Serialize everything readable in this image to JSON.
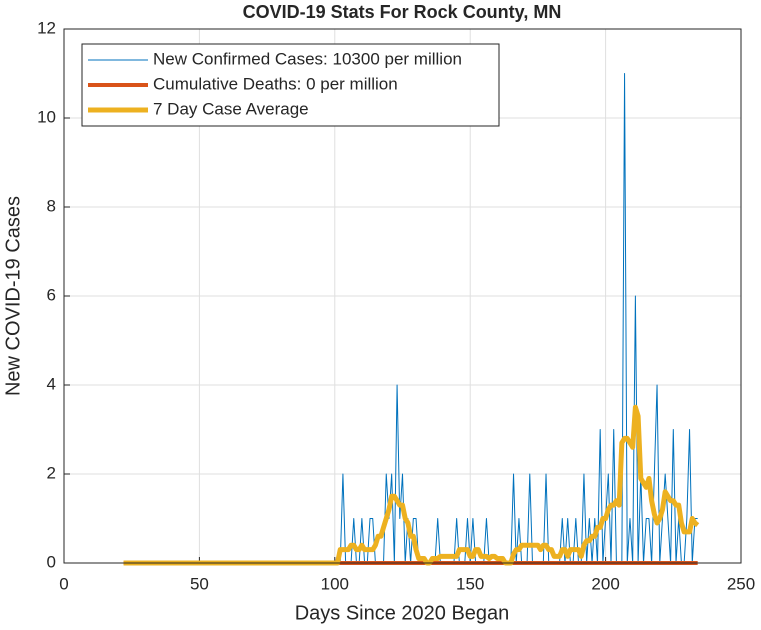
{
  "chart_data": {
    "type": "line",
    "title": "COVID-19 Stats For Rock County, MN",
    "xlabel": "Days Since 2020 Began",
    "ylabel": "New COVID-19 Cases",
    "xlim": [
      0,
      250
    ],
    "xticks": [
      0,
      50,
      100,
      150,
      200,
      250
    ],
    "ylim": [
      0,
      12
    ],
    "yticks": [
      0,
      2,
      4,
      6,
      8,
      10,
      12
    ],
    "grid": true,
    "legend": "upper left",
    "x": [
      22,
      23,
      24,
      25,
      26,
      27,
      28,
      29,
      30,
      31,
      32,
      33,
      34,
      35,
      36,
      37,
      38,
      39,
      40,
      41,
      42,
      43,
      44,
      45,
      46,
      47,
      48,
      49,
      50,
      51,
      52,
      53,
      54,
      55,
      56,
      57,
      58,
      59,
      60,
      61,
      62,
      63,
      64,
      65,
      66,
      67,
      68,
      69,
      70,
      71,
      72,
      73,
      74,
      75,
      76,
      77,
      78,
      79,
      80,
      81,
      82,
      83,
      84,
      85,
      86,
      87,
      88,
      89,
      90,
      91,
      92,
      93,
      94,
      95,
      96,
      97,
      98,
      99,
      100,
      101,
      102,
      103,
      104,
      105,
      106,
      107,
      108,
      109,
      110,
      111,
      112,
      113,
      114,
      115,
      116,
      117,
      118,
      119,
      120,
      121,
      122,
      123,
      124,
      125,
      126,
      127,
      128,
      129,
      130,
      131,
      132,
      133,
      134,
      135,
      136,
      137,
      138,
      139,
      140,
      141,
      142,
      143,
      144,
      145,
      146,
      147,
      148,
      149,
      150,
      151,
      152,
      153,
      154,
      155,
      156,
      157,
      158,
      159,
      160,
      161,
      162,
      163,
      164,
      165,
      166,
      167,
      168,
      169,
      170,
      171,
      172,
      173,
      174,
      175,
      176,
      177,
      178,
      179,
      180,
      181,
      182,
      183,
      184,
      185,
      186,
      187,
      188,
      189,
      190,
      191,
      192,
      193,
      194,
      195,
      196,
      197,
      198,
      199,
      200,
      201,
      202,
      203,
      204,
      205,
      206,
      207,
      208,
      209,
      210,
      211,
      212,
      213,
      214,
      215,
      216,
      217,
      218,
      219,
      220,
      221,
      222,
      223,
      224,
      225,
      226,
      227,
      228,
      229,
      230,
      231,
      232,
      233,
      234
    ],
    "series": [
      {
        "name": "New Confirmed Cases: 10300 per million",
        "color": "#0072BD",
        "width": 1,
        "values": [
          0,
          0,
          0,
          0,
          0,
          0,
          0,
          0,
          0,
          0,
          0,
          0,
          0,
          0,
          0,
          0,
          0,
          0,
          0,
          0,
          0,
          0,
          0,
          0,
          0,
          0,
          0,
          0,
          0,
          0,
          0,
          0,
          0,
          0,
          0,
          0,
          0,
          0,
          0,
          0,
          0,
          0,
          0,
          0,
          0,
          0,
          0,
          0,
          0,
          0,
          0,
          0,
          0,
          0,
          0,
          0,
          0,
          0,
          0,
          0,
          0,
          0,
          0,
          0,
          0,
          0,
          0,
          0,
          0,
          0,
          0,
          0,
          0,
          0,
          0,
          0,
          0,
          0,
          0,
          0,
          0,
          2,
          0,
          0,
          0,
          1,
          0,
          0,
          1,
          0,
          0,
          1,
          1,
          0,
          0,
          0,
          0,
          2,
          1,
          2,
          0,
          4,
          1,
          2,
          0,
          1,
          0,
          1,
          1,
          0,
          0,
          0,
          0,
          0,
          0,
          0,
          1,
          0,
          0,
          0,
          0,
          0,
          0,
          1,
          0,
          0,
          0,
          1,
          0,
          1,
          0,
          0,
          0,
          0,
          1,
          0,
          0,
          0,
          0,
          0,
          0,
          0,
          0,
          0,
          2,
          0,
          1,
          0,
          0,
          0,
          2,
          0,
          0,
          0,
          0,
          0,
          2,
          0,
          0,
          0,
          0,
          0,
          1,
          0,
          1,
          0,
          0,
          1,
          0,
          0,
          2,
          0,
          1,
          0,
          1,
          0,
          3,
          0,
          1,
          2,
          0,
          3,
          0,
          0,
          0,
          11,
          0,
          1,
          0,
          6,
          0,
          2,
          0,
          1,
          1,
          0,
          2,
          4,
          0,
          1,
          2,
          1,
          0,
          3,
          0,
          1,
          0,
          0,
          1,
          3,
          0,
          1,
          1
        ]
      },
      {
        "name": "Cumulative Deaths: 0 per million",
        "color": "#D95319",
        "width": 4,
        "values": [
          0,
          0,
          0,
          0,
          0,
          0,
          0,
          0,
          0,
          0,
          0,
          0,
          0,
          0,
          0,
          0,
          0,
          0,
          0,
          0,
          0,
          0,
          0,
          0,
          0,
          0,
          0,
          0,
          0,
          0,
          0,
          0,
          0,
          0,
          0,
          0,
          0,
          0,
          0,
          0,
          0,
          0,
          0,
          0,
          0,
          0,
          0,
          0,
          0,
          0,
          0,
          0,
          0,
          0,
          0,
          0,
          0,
          0,
          0,
          0,
          0,
          0,
          0,
          0,
          0,
          0,
          0,
          0,
          0,
          0,
          0,
          0,
          0,
          0,
          0,
          0,
          0,
          0,
          0,
          0,
          0,
          0,
          0,
          0,
          0,
          0,
          0,
          0,
          0,
          0,
          0,
          0,
          0,
          0,
          0,
          0,
          0,
          0,
          0,
          0,
          0,
          0,
          0,
          0,
          0,
          0,
          0,
          0,
          0,
          0,
          0,
          0,
          0,
          0,
          0,
          0,
          0,
          0,
          0,
          0,
          0,
          0,
          0,
          0,
          0,
          0,
          0,
          0,
          0,
          0,
          0,
          0,
          0,
          0,
          0,
          0,
          0,
          0,
          0,
          0,
          0,
          0,
          0,
          0,
          0,
          0,
          0,
          0,
          0,
          0,
          0,
          0,
          0,
          0,
          0,
          0,
          0,
          0,
          0,
          0,
          0,
          0,
          0,
          0,
          0,
          0,
          0,
          0,
          0,
          0,
          0,
          0,
          0,
          0,
          0,
          0,
          0,
          0,
          0,
          0,
          0,
          0,
          0,
          0,
          0,
          0,
          0,
          0,
          0,
          0,
          0,
          0,
          0,
          0,
          0,
          0,
          0,
          0,
          0,
          0,
          0,
          0,
          0,
          0,
          0,
          0,
          0,
          0,
          0,
          0,
          0,
          0,
          0
        ]
      },
      {
        "name": "7 Day Case Average",
        "color": "#EDB120",
        "width": 5,
        "values": [
          0,
          0,
          0,
          0,
          0,
          0,
          0,
          0,
          0,
          0,
          0,
          0,
          0,
          0,
          0,
          0,
          0,
          0,
          0,
          0,
          0,
          0,
          0,
          0,
          0,
          0,
          0,
          0,
          0,
          0,
          0,
          0,
          0,
          0,
          0,
          0,
          0,
          0,
          0,
          0,
          0,
          0,
          0,
          0,
          0,
          0,
          0,
          0,
          0,
          0,
          0,
          0,
          0,
          0,
          0,
          0,
          0,
          0,
          0,
          0,
          0,
          0,
          0,
          0,
          0,
          0,
          0,
          0,
          0,
          0,
          0,
          0,
          0,
          0,
          0,
          0,
          0,
          0,
          0,
          0,
          0.3,
          0.3,
          0.3,
          0.3,
          0.4,
          0.4,
          0.3,
          0.3,
          0.4,
          0.3,
          0.3,
          0.3,
          0.3,
          0.4,
          0.6,
          0.6,
          0.8,
          1.0,
          1.2,
          1.5,
          1.5,
          1.4,
          1.3,
          1.3,
          1.0,
          0.9,
          0.6,
          0.6,
          0.3,
          0.1,
          0.1,
          0.1,
          0,
          0,
          0.1,
          0.1,
          0.1,
          0.15,
          0.15,
          0.15,
          0.15,
          0.15,
          0.15,
          0.15,
          0.3,
          0.3,
          0.3,
          0.3,
          0.15,
          0.15,
          0.3,
          0.3,
          0.15,
          0.15,
          0.15,
          0.1,
          0.15,
          0.15,
          0.1,
          0.1,
          0.1,
          0,
          0,
          0,
          0.2,
          0.3,
          0.3,
          0.4,
          0.4,
          0.4,
          0.4,
          0.4,
          0.4,
          0.4,
          0.3,
          0.4,
          0.4,
          0.3,
          0.3,
          0.15,
          0.15,
          0.15,
          0.3,
          0.3,
          0.15,
          0.3,
          0.3,
          0.3,
          0.3,
          0.15,
          0.4,
          0.5,
          0.5,
          0.6,
          0.6,
          0.8,
          0.8,
          1.0,
          1.0,
          1.2,
          1.3,
          1.3,
          1.4,
          1.3,
          2.7,
          2.8,
          2.8,
          2.7,
          2.6,
          3.5,
          3.3,
          1.9,
          1.8,
          1.7,
          1.9,
          1.4,
          1.1,
          0.9,
          1.0,
          1.2,
          1.6,
          1.5,
          1.4,
          1.4,
          1.3,
          1.3,
          0.9,
          0.7,
          0.7,
          0.7,
          1.0,
          0.9,
          0.85
        ]
      }
    ]
  }
}
